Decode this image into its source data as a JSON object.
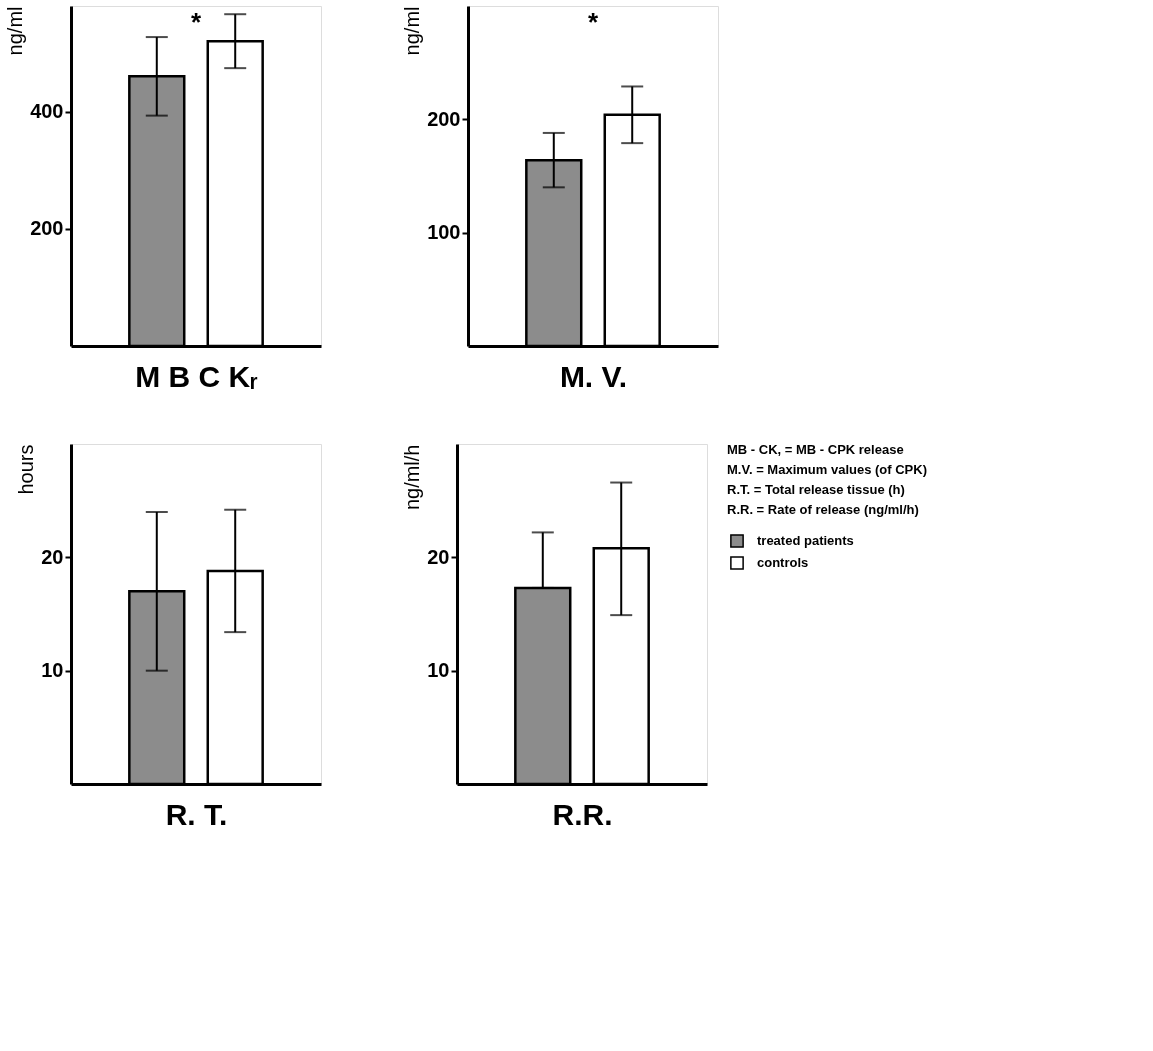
{
  "chart_data": [
    {
      "type": "bar",
      "xlabel": "M B C Kᵣ",
      "ylabel": "ng/ml",
      "categories": [
        null
      ],
      "ylim": [
        0,
        580
      ],
      "yticks": [
        200,
        400
      ],
      "annotations": [
        "*"
      ],
      "series": [
        {
          "color": "#8c8c8c",
          "values": [
            460
          ],
          "errors": [
            67
          ]
        },
        {
          "color": "#ffffff",
          "values": [
            520
          ],
          "errors": [
            46
          ]
        }
      ]
    },
    {
      "type": "bar",
      "xlabel": "M. V.",
      "ylabel": "ng/ml",
      "categories": [
        null
      ],
      "ylim": [
        0,
        300
      ],
      "yticks": [
        100,
        200
      ],
      "annotations": [
        "*"
      ],
      "series": [
        {
          "color": "#8c8c8c",
          "values": [
            164
          ],
          "errors": [
            24
          ]
        },
        {
          "color": "#ffffff",
          "values": [
            204
          ],
          "errors": [
            25
          ]
        }
      ]
    },
    {
      "type": "bar",
      "xlabel": "R. T.",
      "ylabel": "hours",
      "categories": [
        null
      ],
      "ylim": [
        0,
        30
      ],
      "yticks": [
        10,
        20
      ],
      "series": [
        {
          "color": "#8c8c8c",
          "values": [
            17
          ],
          "errors": [
            7
          ]
        },
        {
          "color": "#ffffff",
          "values": [
            18.8
          ],
          "errors": [
            [
              13.4,
              24.2
            ]
          ]
        }
      ]
    },
    {
      "type": "bar",
      "xlabel": "R.R.",
      "ylabel": "ng/ml/h",
      "categories": [
        null
      ],
      "ylim": [
        0,
        30
      ],
      "yticks": [
        10,
        20
      ],
      "legend": "top right",
      "annotations": [
        "MB - CK, = MB - CPK release",
        "M.V. = Maximum values (of CPK)",
        "R.T. = Total release tissue (h)",
        "R.R. = Rate of release (ng/ml/h)"
      ],
      "series": [
        {
          "name": "treated patients",
          "color": "#8c8c8c",
          "values": [
            17.3
          ],
          "errors": [
            [
              17.3,
              22.2
            ]
          ]
        },
        {
          "name": "controls",
          "color": "#ffffff",
          "values": [
            20.8
          ],
          "errors": [
            [
              14.9,
              26.6
            ]
          ]
        }
      ]
    }
  ]
}
